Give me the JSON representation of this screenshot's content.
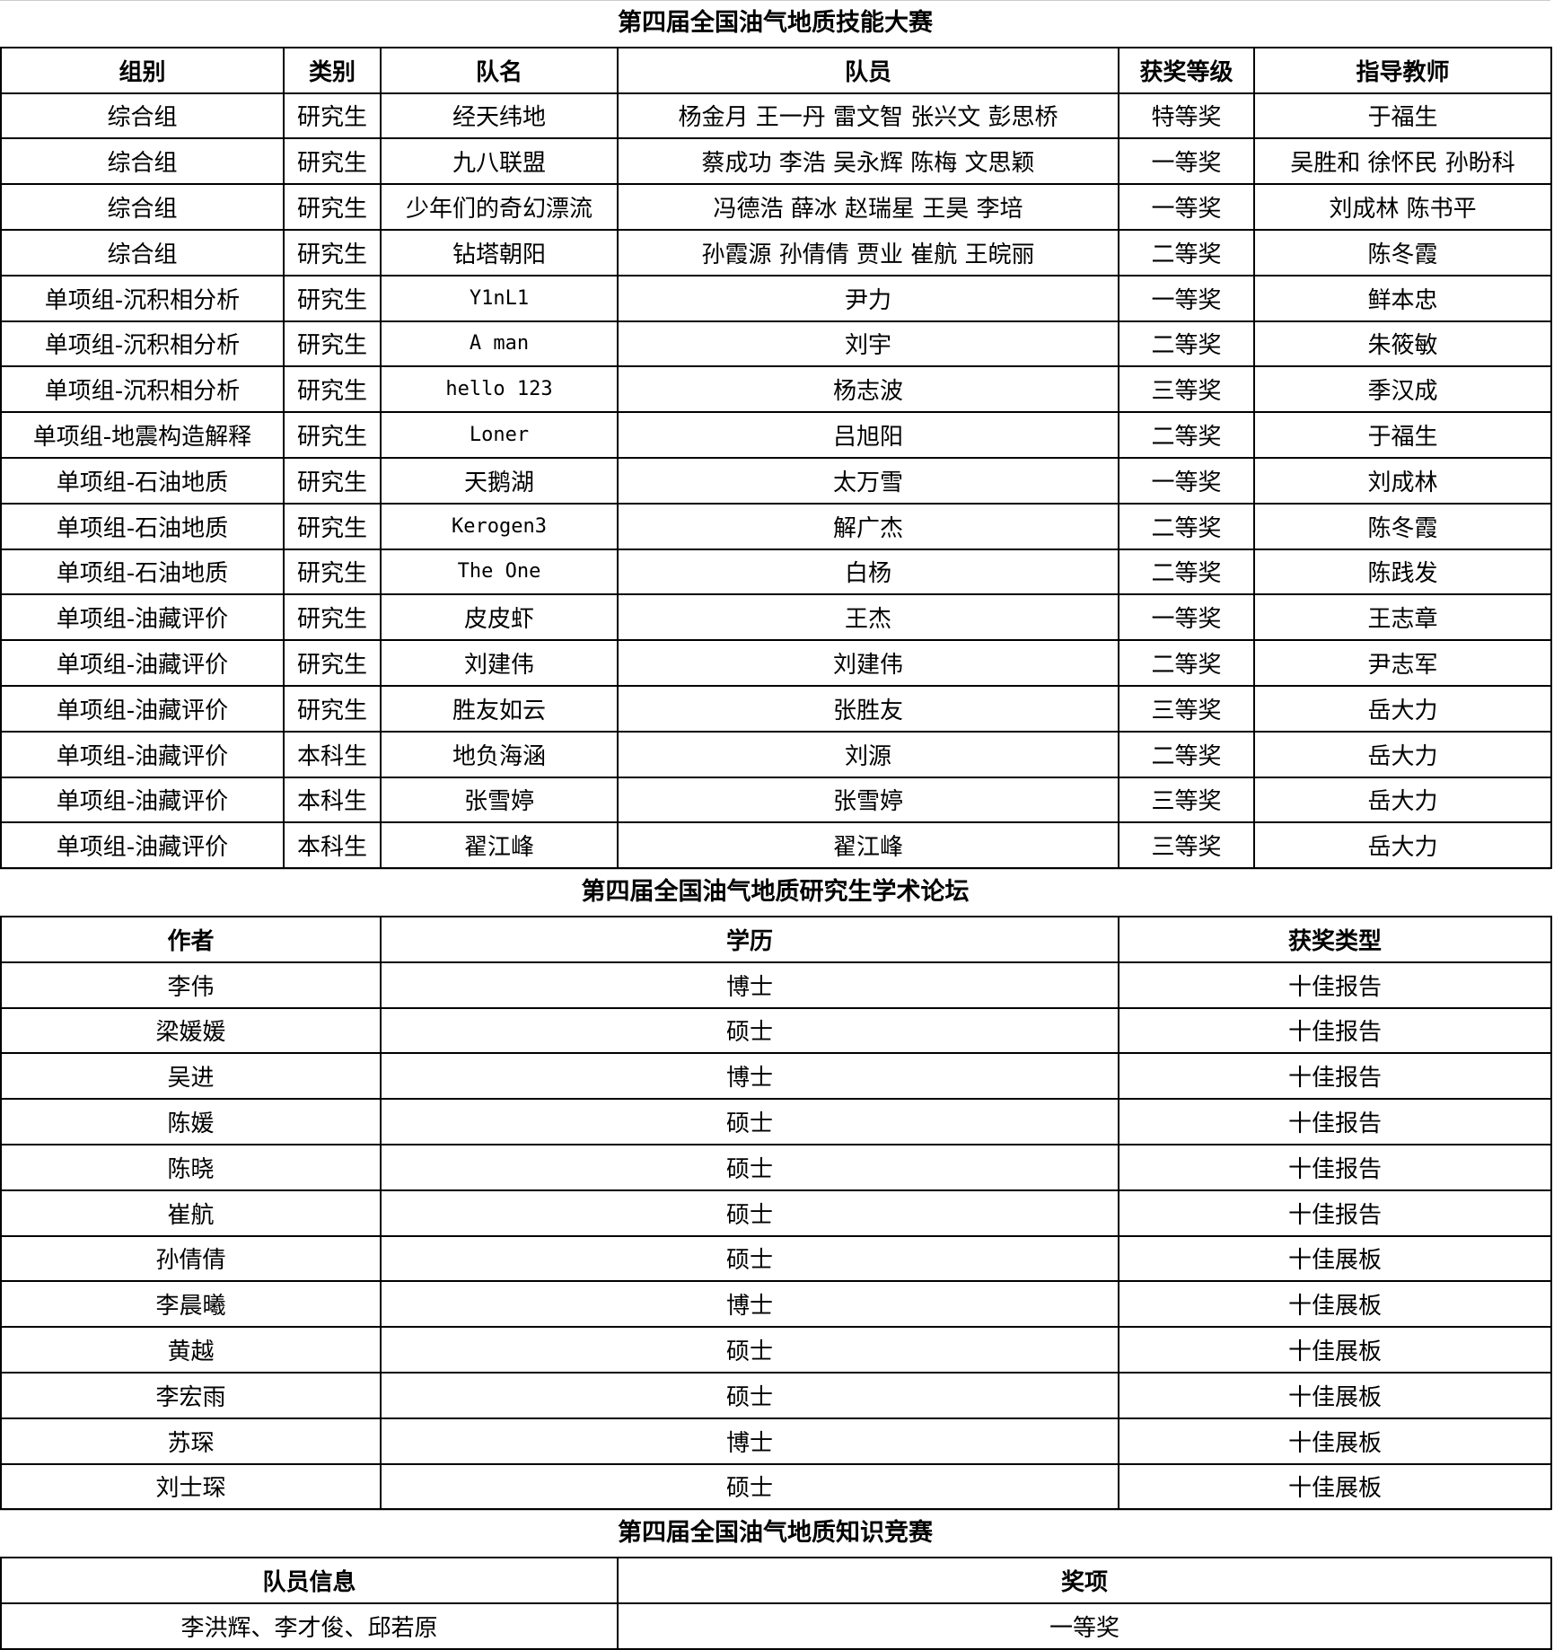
{
  "skills": {
    "title": "第四届全国油气地质技能大赛",
    "headers": [
      "组别",
      "类别",
      "队名",
      "队员",
      "获奖等级",
      "指导教师"
    ],
    "rows": [
      [
        "综合组",
        "研究生",
        "经天纬地",
        "杨金月 王一丹 雷文智 张兴文 彭思桥",
        "特等奖",
        "于福生"
      ],
      [
        "综合组",
        "研究生",
        "九八联盟",
        "蔡成功 李浩 吴永辉 陈梅 文思颖",
        "一等奖",
        "吴胜和 徐怀民 孙盼科"
      ],
      [
        "综合组",
        "研究生",
        "少年们的奇幻漂流",
        "冯德浩 薛冰 赵瑞星 王昊 李培",
        "一等奖",
        "刘成林 陈书平"
      ],
      [
        "综合组",
        "研究生",
        "钻塔朝阳",
        "孙霞源 孙倩倩 贾业 崔航 王皖丽",
        "二等奖",
        "陈冬霞"
      ],
      [
        "单项组-沉积相分析",
        "研究生",
        "Y1nL1",
        "尹力",
        "一等奖",
        "鲜本忠"
      ],
      [
        "单项组-沉积相分析",
        "研究生",
        "A man",
        "刘宇",
        "二等奖",
        "朱筱敏"
      ],
      [
        "单项组-沉积相分析",
        "研究生",
        "hello 123",
        "杨志波",
        "三等奖",
        "季汉成"
      ],
      [
        "单项组-地震构造解释",
        "研究生",
        "Loner",
        "吕旭阳",
        "二等奖",
        "于福生"
      ],
      [
        "单项组-石油地质",
        "研究生",
        "天鹅湖",
        "太万雪",
        "一等奖",
        "刘成林"
      ],
      [
        "单项组-石油地质",
        "研究生",
        "Kerogen3",
        "解广杰",
        "二等奖",
        "陈冬霞"
      ],
      [
        "单项组-石油地质",
        "研究生",
        "The One",
        "白杨",
        "二等奖",
        "陈践发"
      ],
      [
        "单项组-油藏评价",
        "研究生",
        "皮皮虾",
        "王杰",
        "一等奖",
        "王志章"
      ],
      [
        "单项组-油藏评价",
        "研究生",
        "刘建伟",
        "刘建伟",
        "二等奖",
        "尹志军"
      ],
      [
        "单项组-油藏评价",
        "研究生",
        "胜友如云",
        "张胜友",
        "三等奖",
        "岳大力"
      ],
      [
        "单项组-油藏评价",
        "本科生",
        "地负海涵",
        "刘源",
        "二等奖",
        "岳大力"
      ],
      [
        "单项组-油藏评价",
        "本科生",
        "张雪婷",
        "张雪婷",
        "三等奖",
        "岳大力"
      ],
      [
        "单项组-油藏评价",
        "本科生",
        "翟江峰",
        "翟江峰",
        "三等奖",
        "岳大力"
      ]
    ]
  },
  "forum": {
    "title": "第四届全国油气地质研究生学术论坛",
    "headers": [
      "作者",
      "学历",
      "获奖类型"
    ],
    "rows": [
      [
        "李伟",
        "博士",
        "十佳报告"
      ],
      [
        "梁媛媛",
        "硕士",
        "十佳报告"
      ],
      [
        "吴进",
        "博士",
        "十佳报告"
      ],
      [
        "陈媛",
        "硕士",
        "十佳报告"
      ],
      [
        "陈晓",
        "硕士",
        "十佳报告"
      ],
      [
        "崔航",
        "硕士",
        "十佳报告"
      ],
      [
        "孙倩倩",
        "硕士",
        "十佳展板"
      ],
      [
        "李晨曦",
        "博士",
        "十佳展板"
      ],
      [
        "黄越",
        "硕士",
        "十佳展板"
      ],
      [
        "李宏雨",
        "硕士",
        "十佳展板"
      ],
      [
        "苏琛",
        "博士",
        "十佳展板"
      ],
      [
        "刘士琛",
        "硕士",
        "十佳展板"
      ]
    ]
  },
  "quiz": {
    "title": "第四届全国油气地质知识竞赛",
    "headers": [
      "队员信息",
      "奖项"
    ],
    "rows": [
      [
        "李洪辉、李才俊、邱若原",
        "一等奖"
      ]
    ]
  }
}
